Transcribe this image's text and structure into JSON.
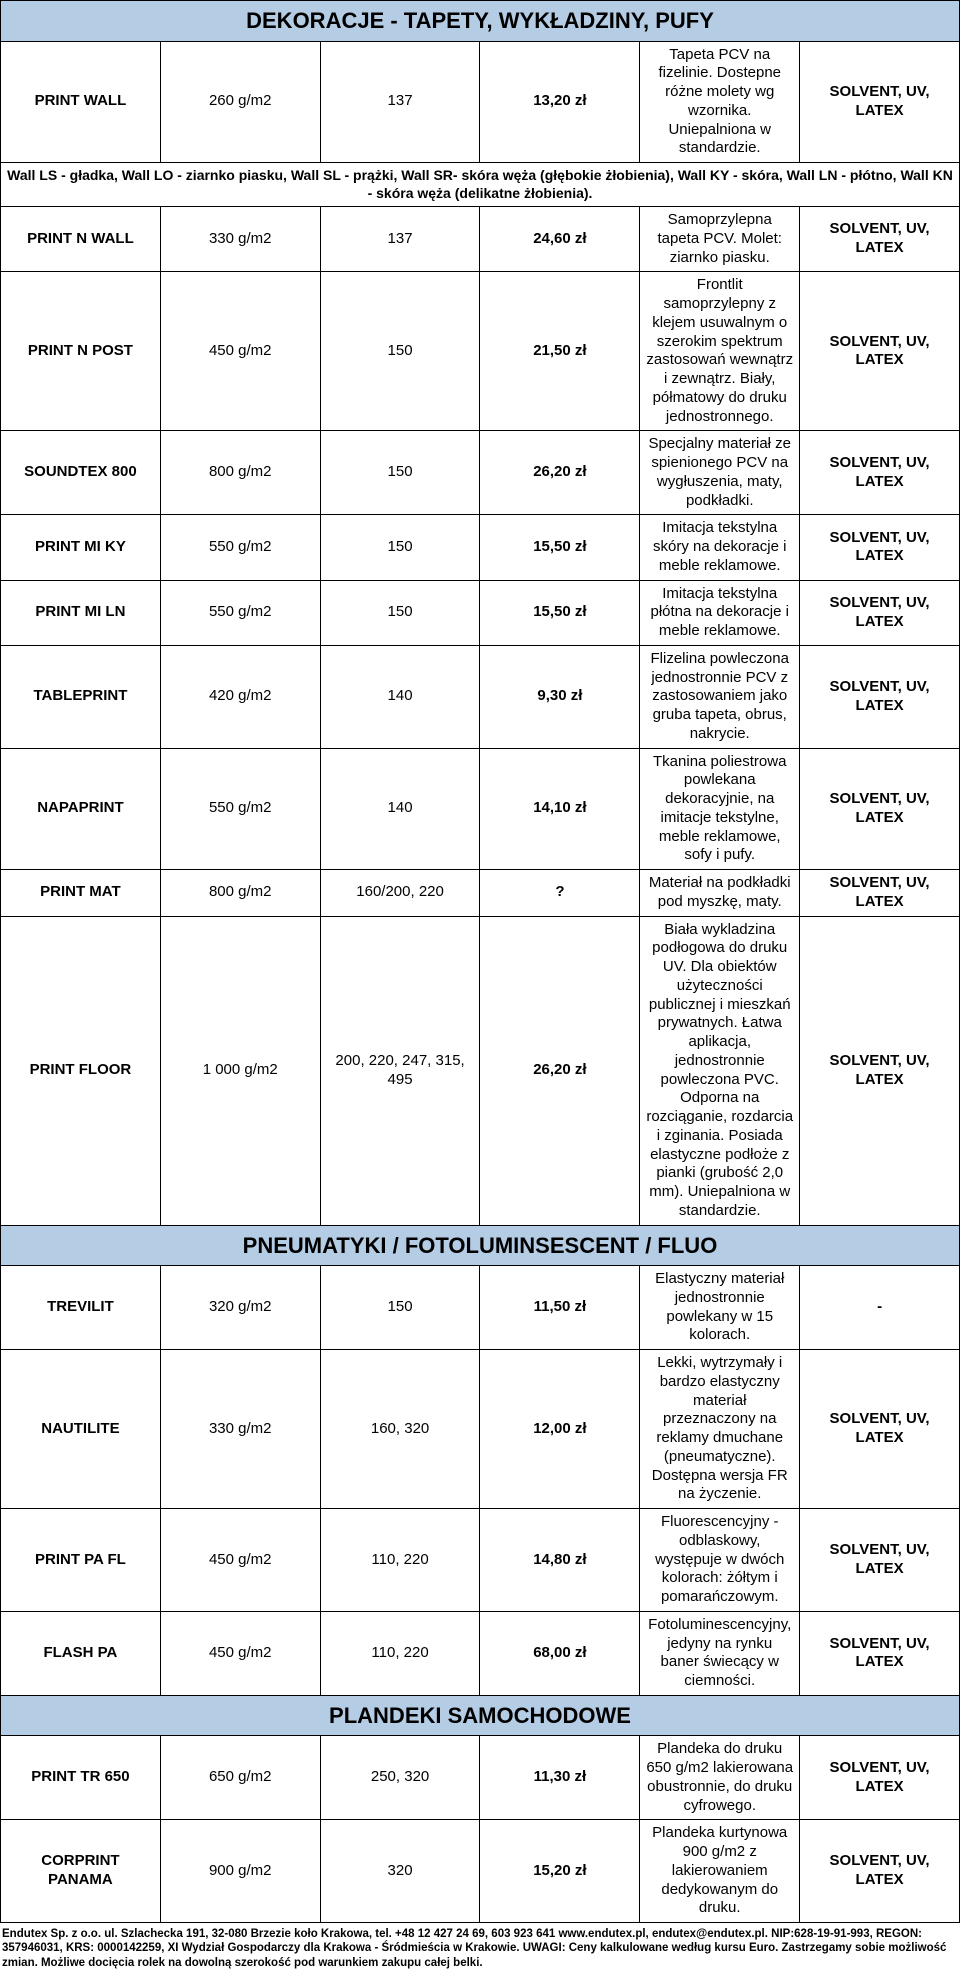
{
  "colors": {
    "header_bg": "#b5cce5",
    "border": "#000000",
    "text": "#000000",
    "page_bg": "#ffffff"
  },
  "typography": {
    "body_font": "Arial",
    "body_size_pt": 11,
    "section_header_size_pt": 17,
    "section_header_weight": 700,
    "footer_size_pt": 8.5
  },
  "layout": {
    "columns": [
      {
        "key": "name",
        "width_pct": 14,
        "align": "center",
        "bold": true
      },
      {
        "key": "gram",
        "width_pct": 11,
        "align": "center"
      },
      {
        "key": "width",
        "width_pct": 11,
        "align": "center"
      },
      {
        "key": "price",
        "width_pct": 11,
        "align": "center",
        "bold": true
      },
      {
        "key": "desc",
        "width_pct": 37,
        "align": "center"
      },
      {
        "key": "ink",
        "width_pct": 16,
        "align": "center",
        "bold": true
      }
    ]
  },
  "sections": [
    {
      "title": "DEKORACJE - TAPETY, WYKŁADZINY, PUFY",
      "rows": [
        {
          "name": "PRINT WALL",
          "gram": "260 g/m2",
          "width": "137",
          "price": "13,20 zł",
          "desc": "Tapeta PCV na fizelinie. Dostepne różne molety wg wzornika. Uniepalniona w standardzie.",
          "ink": "SOLVENT, UV, LATEX"
        }
      ],
      "note": "Wall LS - gładka, Wall LO - ziarnko piasku, Wall SL - prążki, Wall SR- skóra węża (głębokie żłobienia), Wall KY - skóra, Wall LN - płótno, Wall KN - skóra węża (delikatne żłobienia).",
      "rows2": [
        {
          "name": "PRINT N WALL",
          "gram": "330 g/m2",
          "width": "137",
          "price": "24,60 zł",
          "desc": "Samoprzylepna tapeta PCV. Molet: ziarnko piasku.",
          "ink": "SOLVENT, UV, LATEX"
        },
        {
          "name": "PRINT N POST",
          "gram": "450 g/m2",
          "width": "150",
          "price": "21,50 zł",
          "desc": "Frontlit samoprzylepny z klejem usuwalnym o szerokim spektrum zastosowań wewnątrz i zewnątrz. Biały, półmatowy do druku jednostronnego.",
          "ink": "SOLVENT, UV, LATEX"
        },
        {
          "name": "SOUNDTEX 800",
          "gram": "800 g/m2",
          "width": "150",
          "price": "26,20 zł",
          "desc": "Specjalny materiał ze spienionego PCV na wygłuszenia, maty, podkładki.",
          "ink": "SOLVENT, UV, LATEX"
        },
        {
          "name": "PRINT MI KY",
          "gram": "550 g/m2",
          "width": "150",
          "price": "15,50 zł",
          "desc": "Imitacja tekstylna skóry na dekoracje i meble reklamowe.",
          "ink": "SOLVENT, UV, LATEX"
        },
        {
          "name": "PRINT MI LN",
          "gram": "550 g/m2",
          "width": "150",
          "price": "15,50 zł",
          "desc": "Imitacja tekstylna płótna na dekoracje i meble reklamowe.",
          "ink": "SOLVENT, UV, LATEX"
        },
        {
          "name": "TABLEPRINT",
          "gram": "420 g/m2",
          "width": "140",
          "price": "9,30 zł",
          "desc": "Flizelina powleczona jednostronnie PCV z zastosowaniem jako gruba tapeta, obrus, nakrycie.",
          "ink": "SOLVENT, UV, LATEX"
        },
        {
          "name": "NAPAPRINT",
          "gram": "550 g/m2",
          "width": "140",
          "price": "14,10 zł",
          "desc": "Tkanina poliestrowa powlekana dekoracyjnie, na imitacje tekstylne, meble reklamowe, sofy i pufy.",
          "ink": "SOLVENT, UV, LATEX"
        },
        {
          "name": "PRINT MAT",
          "gram": "800 g/m2",
          "width": "160/200, 220",
          "price": "?",
          "desc": "Materiał na podkładki pod myszkę, maty.",
          "ink": "SOLVENT, UV, LATEX"
        },
        {
          "name": "PRINT FLOOR",
          "gram": "1 000 g/m2",
          "width": "200, 220, 247, 315, 495",
          "price": "26,20 zł",
          "desc": "Biała wykladzina podłogowa do druku UV. Dla obiektów użyteczności publicznej i mieszkań prywatnych. Łatwa aplikacja, jednostronnie powleczona PVC. Odporna na rozciąganie, rozdarcia i zginania. Posiada elastyczne podłoże z pianki (grubość 2,0 mm). Uniepalniona w standardzie.",
          "ink": "SOLVENT, UV, LATEX"
        }
      ]
    },
    {
      "title": "PNEUMATYKI / FOTOLUMINSESCENT / FLUO",
      "rows": [
        {
          "name": "TREVILIT",
          "gram": "320 g/m2",
          "width": "150",
          "price": "11,50 zł",
          "desc": "Elastyczny materiał jednostronnie powlekany w 15 kolorach.",
          "ink": "-"
        },
        {
          "name": "NAUTILITE",
          "gram": "330 g/m2",
          "width": "160, 320",
          "price": "12,00 zł",
          "desc": "Lekki, wytrzymały i bardzo elastyczny materiał przeznaczony na reklamy dmuchane (pneumatyczne). Dostępna wersja FR na życzenie.",
          "ink": "SOLVENT, UV, LATEX"
        },
        {
          "name": "PRINT PA FL",
          "gram": "450 g/m2",
          "width": "110, 220",
          "price": "14,80 zł",
          "desc": "Fluorescencyjny - odblaskowy, występuje w dwóch kolorach: żółtym i pomarańczowym.",
          "ink": "SOLVENT, UV, LATEX"
        },
        {
          "name": "FLASH PA",
          "gram": "450 g/m2",
          "width": "110, 220",
          "price": "68,00 zł",
          "desc": "Fotoluminescencyjny, jedyny na rynku baner świecący w ciemności.",
          "ink": "SOLVENT, UV, LATEX"
        }
      ]
    },
    {
      "title": "PLANDEKI SAMOCHODOWE",
      "rows": [
        {
          "name": "PRINT TR 650",
          "gram": "650 g/m2",
          "width": "250, 320",
          "price": "11,30 zł",
          "desc": "Plandeka do druku 650 g/m2 lakierowana obustronnie, do druku cyfrowego.",
          "ink": "SOLVENT, UV, LATEX"
        },
        {
          "name": "CORPRINT PANAMA",
          "gram": "900 g/m2",
          "width": "320",
          "price": "15,20 zł",
          "desc": "Plandeka kurtynowa 900 g/m2 z lakierowaniem dedykowanym do druku.",
          "ink": "SOLVENT, UV, LATEX"
        }
      ]
    }
  ],
  "footer": "Endutex Sp. z o.o. ul. Szlachecka 191, 32-080 Brzezie koło Krakowa, tel. +48 12 427 24 69, 603 923 641 www.endutex.pl, endutex@endutex.pl. NIP:628-19-91-993, REGON: 357946031, KRS: 0000142259, XI Wydział Gospodarczy dla Krakowa - Śródmieścia w Krakowie. UWAGI: Ceny kalkulowane według kursu Euro. Zastrzegamy sobie możliwość zmian. Możliwe docięcia rolek na dowolną szerokość pod warunkiem zakupu całej belki."
}
